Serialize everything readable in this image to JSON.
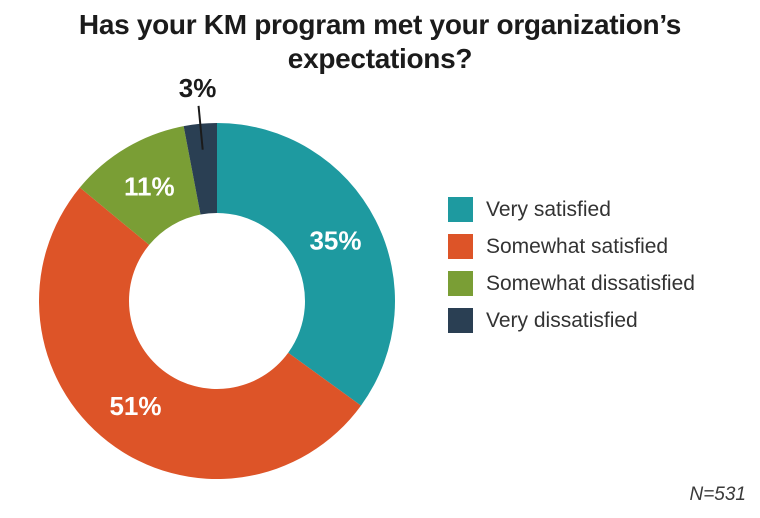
{
  "chart_data": {
    "type": "pie",
    "subtype": "donut",
    "title": "Has your KM program met your organization’s expectations?",
    "note": "N=531",
    "sample_size": 531,
    "legend_position": "right",
    "background_color": "#FFFFFF",
    "label_color_inside": "#FFFFFF",
    "label_color_outside": "#1B1B1B",
    "segments": [
      {
        "id": "very-satisfied",
        "name": "Very satisfied",
        "value": 35,
        "label": "35%",
        "color": "#1E9AA0"
      },
      {
        "id": "somewhat-satisfied",
        "name": "Somewhat satisfied",
        "value": 51,
        "label": "51%",
        "color": "#DD5428"
      },
      {
        "id": "somewhat-dissatisfied",
        "name": "Somewhat dissatisfied",
        "value": 11,
        "label": "11%",
        "color": "#7A9E35"
      },
      {
        "id": "very-dissatisfied",
        "name": "Very dissatisfied",
        "value": 3,
        "label": "3%",
        "color": "#2A3F53"
      }
    ]
  }
}
